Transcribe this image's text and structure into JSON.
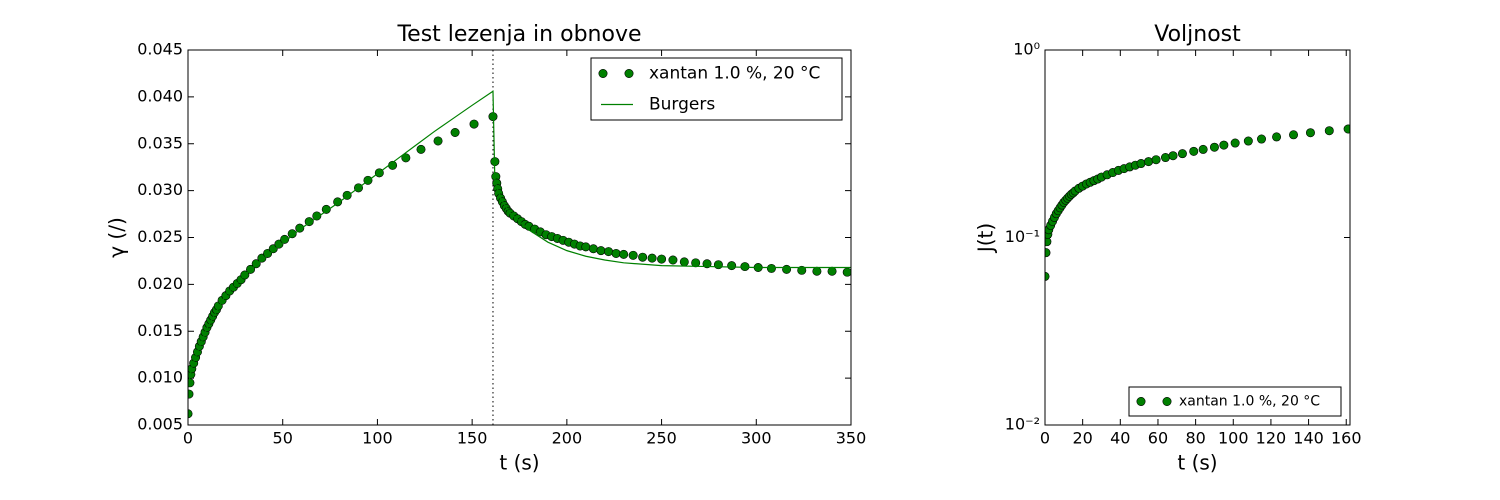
{
  "chart_data": [
    {
      "type": "scatter",
      "title": "Test lezenja in obnove",
      "xlabel": "t (s)",
      "ylabel": "γ (/)",
      "xlim": [
        0,
        350
      ],
      "ylim": [
        0.005,
        0.045
      ],
      "xticks": [
        0,
        50,
        100,
        150,
        200,
        250,
        300,
        350
      ],
      "yticks": [
        0.005,
        {
          "value": 0.01,
          "label": "0.010"
        },
        0.015,
        {
          "value": 0.02,
          "label": "0.020"
        },
        0.025,
        {
          "value": 0.03,
          "label": "0.030"
        },
        0.035,
        {
          "value": 0.04,
          "label": "0.040"
        },
        0.045
      ],
      "vline": 161,
      "legend": "upper right",
      "series": [
        {
          "name": "xantan 1.0 %, 20 °C",
          "style": "markers",
          "color": "#008000",
          "x": [
            0,
            0.5,
            1,
            1.5,
            2,
            3,
            4,
            5,
            6,
            7,
            8,
            9,
            10,
            11,
            12,
            13,
            14,
            15,
            16,
            18,
            20,
            22,
            24,
            26,
            28,
            30,
            33,
            36,
            39,
            42,
            45,
            48,
            51,
            55,
            59,
            64,
            68,
            73,
            79,
            84,
            90,
            95,
            101,
            108,
            115,
            123,
            132,
            141,
            151,
            161,
            162,
            162.5,
            163,
            163.5,
            164,
            165,
            166,
            167,
            168,
            169,
            170,
            172,
            174,
            176,
            178,
            180,
            183,
            186,
            189,
            192,
            195,
            198,
            201,
            204,
            207,
            210,
            214,
            218,
            222,
            226,
            230,
            235,
            240,
            245,
            250,
            256,
            262,
            268,
            274,
            280,
            287,
            294,
            301,
            308,
            316,
            324,
            332,
            340,
            348
          ],
          "values": [
            0.0062,
            0.0083,
            0.0095,
            0.0104,
            0.011,
            0.0116,
            0.0122,
            0.0128,
            0.0134,
            0.0139,
            0.0144,
            0.0149,
            0.0154,
            0.0158,
            0.0162,
            0.0166,
            0.017,
            0.0173,
            0.0177,
            0.0183,
            0.0188,
            0.0193,
            0.0197,
            0.0201,
            0.0205,
            0.021,
            0.0216,
            0.0222,
            0.0228,
            0.0233,
            0.0238,
            0.0243,
            0.0248,
            0.0254,
            0.026,
            0.0267,
            0.0273,
            0.028,
            0.0288,
            0.0295,
            0.0303,
            0.0311,
            0.0319,
            0.0327,
            0.0335,
            0.0344,
            0.0353,
            0.0362,
            0.0371,
            0.0379,
            0.0331,
            0.0315,
            0.0308,
            0.0302,
            0.0297,
            0.0292,
            0.0288,
            0.0284,
            0.0281,
            0.0278,
            0.0276,
            0.0273,
            0.027,
            0.0267,
            0.0264,
            0.0262,
            0.0259,
            0.0256,
            0.0253,
            0.0251,
            0.0249,
            0.0247,
            0.0245,
            0.0243,
            0.0241,
            0.024,
            0.0238,
            0.0236,
            0.0235,
            0.0233,
            0.0232,
            0.0231,
            0.0229,
            0.0228,
            0.0227,
            0.0226,
            0.0224,
            0.0223,
            0.0222,
            0.0221,
            0.022,
            0.0219,
            0.0218,
            0.0217,
            0.0216,
            0.0215,
            0.0214,
            0.0214,
            0.0213
          ]
        },
        {
          "name": "Burgers",
          "style": "line",
          "color": "#008000",
          "x": [
            0,
            2,
            5,
            10,
            20,
            30,
            40,
            50,
            60,
            70,
            80,
            90,
            100,
            110,
            120,
            130,
            140,
            150,
            161,
            162,
            165,
            170,
            180,
            190,
            200,
            210,
            220,
            230,
            250,
            275,
            300,
            350
          ],
          "values": [
            0.009,
            0.0112,
            0.0128,
            0.0153,
            0.0189,
            0.021,
            0.0228,
            0.0244,
            0.026,
            0.0274,
            0.0288,
            0.0303,
            0.0318,
            0.0333,
            0.0348,
            0.0363,
            0.0377,
            0.0391,
            0.0406,
            0.031,
            0.0292,
            0.0276,
            0.0258,
            0.0245,
            0.0236,
            0.023,
            0.0226,
            0.0223,
            0.022,
            0.0219,
            0.0218,
            0.0218
          ]
        }
      ]
    },
    {
      "type": "scatter",
      "title": "Voljnost",
      "xlabel": "t (s)",
      "ylabel": "J(t)",
      "log_y": true,
      "xlim": [
        0,
        162
      ],
      "ylim": [
        0.01,
        1
      ],
      "xticks": [
        0,
        20,
        40,
        60,
        80,
        100,
        120,
        140,
        160
      ],
      "yticks": [
        {
          "value": 0.01,
          "label": "10⁻²"
        },
        {
          "value": 0.1,
          "label": "10⁻¹"
        },
        {
          "value": 1,
          "label": "10⁰"
        }
      ],
      "legend": "lower right",
      "series": [
        {
          "name": "xantan 1.0 %, 20 °C",
          "style": "markers",
          "color": "#008000",
          "x": [
            0,
            0.5,
            1,
            1.5,
            2,
            3,
            4,
            5,
            6,
            7,
            8,
            9,
            10,
            11,
            12,
            13,
            14,
            15,
            16,
            18,
            20,
            22,
            24,
            26,
            28,
            30,
            33,
            36,
            39,
            42,
            45,
            48,
            51,
            55,
            59,
            64,
            68,
            73,
            79,
            84,
            90,
            95,
            101,
            108,
            115,
            123,
            132,
            141,
            151,
            161
          ],
          "values": [
            0.062,
            0.083,
            0.095,
            0.104,
            0.11,
            0.116,
            0.122,
            0.128,
            0.134,
            0.139,
            0.144,
            0.149,
            0.154,
            0.158,
            0.162,
            0.166,
            0.17,
            0.173,
            0.177,
            0.183,
            0.188,
            0.193,
            0.197,
            0.201,
            0.205,
            0.21,
            0.216,
            0.222,
            0.228,
            0.233,
            0.238,
            0.243,
            0.248,
            0.254,
            0.26,
            0.267,
            0.273,
            0.28,
            0.288,
            0.295,
            0.303,
            0.311,
            0.319,
            0.327,
            0.335,
            0.344,
            0.353,
            0.362,
            0.371,
            0.379
          ]
        }
      ]
    }
  ]
}
